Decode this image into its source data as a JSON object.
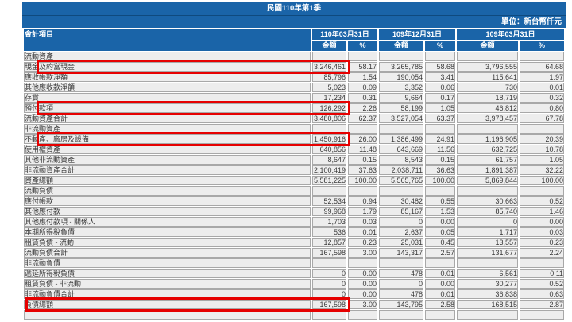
{
  "header": {
    "period_title": "民國110年第1季",
    "unit_label": "單位：新台幣仟元"
  },
  "table": {
    "item_column_header": "會計項目",
    "amount_header": "金額",
    "percent_header": "%",
    "period_headers": [
      "110年03月31日",
      "109年12月31日",
      "109年03月31日"
    ],
    "rows": [
      {
        "label": "流動資產",
        "indent": 0,
        "section": true,
        "highlight": false,
        "values": null
      },
      {
        "label": "現金及約當現金",
        "indent": 2,
        "section": false,
        "highlight": true,
        "values": [
          "3,246,461",
          "58.17",
          "3,265,785",
          "58.68",
          "3,796,555",
          "64.68"
        ]
      },
      {
        "label": "應收帳款淨額",
        "indent": 2,
        "section": false,
        "highlight": false,
        "values": [
          "85,796",
          "1.54",
          "190,054",
          "3.41",
          "115,641",
          "1.97"
        ]
      },
      {
        "label": "其他應收款淨額",
        "indent": 2,
        "section": false,
        "highlight": false,
        "values": [
          "5,023",
          "0.09",
          "3,352",
          "0.06",
          "730",
          "0.01"
        ]
      },
      {
        "label": "存貨",
        "indent": 2,
        "section": false,
        "highlight": false,
        "values": [
          "17,234",
          "0.31",
          "9,664",
          "0.17",
          "18,719",
          "0.32"
        ]
      },
      {
        "label": "預付款項",
        "indent": 2,
        "section": false,
        "highlight": true,
        "values": [
          "126,292",
          "2.26",
          "58,199",
          "1.05",
          "46,812",
          "0.80"
        ]
      },
      {
        "label": "流動資產合計",
        "indent": 1,
        "section": false,
        "highlight": false,
        "values": [
          "3,480,806",
          "62.37",
          "3,527,054",
          "63.37",
          "3,978,457",
          "67.78"
        ]
      },
      {
        "label": "非流動資產",
        "indent": 0,
        "section": true,
        "highlight": false,
        "values": null
      },
      {
        "label": "不動產、廠房及設備",
        "indent": 2,
        "section": false,
        "highlight": true,
        "values": [
          "1,450,916",
          "26.00",
          "1,386,499",
          "24.91",
          "1,196,905",
          "20.39"
        ]
      },
      {
        "label": "使用權資產",
        "indent": 2,
        "section": false,
        "highlight": false,
        "values": [
          "640,856",
          "11.48",
          "643,669",
          "11.56",
          "632,725",
          "10.78"
        ]
      },
      {
        "label": "其他非流動資產",
        "indent": 2,
        "section": false,
        "highlight": false,
        "values": [
          "8,647",
          "0.15",
          "8,543",
          "0.15",
          "61,757",
          "1.05"
        ]
      },
      {
        "label": "非流動資產合計",
        "indent": 1,
        "section": false,
        "highlight": false,
        "values": [
          "2,100,419",
          "37.63",
          "2,038,711",
          "36.63",
          "1,891,387",
          "32.22"
        ]
      },
      {
        "label": "資產總額",
        "indent": 0,
        "section": false,
        "highlight": false,
        "values": [
          "5,581,225",
          "100.00",
          "5,565,765",
          "100.00",
          "5,869,844",
          "100.00"
        ]
      },
      {
        "label": "流動負債",
        "indent": 0,
        "section": true,
        "highlight": false,
        "values": null
      },
      {
        "label": "應付帳款",
        "indent": 2,
        "section": false,
        "highlight": false,
        "values": [
          "52,534",
          "0.94",
          "30,482",
          "0.55",
          "30,663",
          "0.52"
        ]
      },
      {
        "label": "其他應付款",
        "indent": 2,
        "section": false,
        "highlight": false,
        "values": [
          "99,968",
          "1.79",
          "85,167",
          "1.53",
          "85,740",
          "1.46"
        ]
      },
      {
        "label": "其他應付款項 - 關係人",
        "indent": 2,
        "section": false,
        "highlight": false,
        "values": [
          "1,703",
          "0.03",
          "0",
          "0.00",
          "0",
          "0.00"
        ]
      },
      {
        "label": "本期所得稅負債",
        "indent": 2,
        "section": false,
        "highlight": false,
        "values": [
          "536",
          "0.01",
          "2,637",
          "0.05",
          "1,717",
          "0.03"
        ]
      },
      {
        "label": "租賃負債 - 流動",
        "indent": 2,
        "section": false,
        "highlight": false,
        "values": [
          "12,857",
          "0.23",
          "25,031",
          "0.45",
          "13,557",
          "0.23"
        ]
      },
      {
        "label": "流動負債合計",
        "indent": 1,
        "section": false,
        "highlight": false,
        "values": [
          "167,598",
          "3.00",
          "143,317",
          "2.57",
          "131,677",
          "2.24"
        ]
      },
      {
        "label": "非流動負債",
        "indent": 0,
        "section": true,
        "highlight": false,
        "values": null
      },
      {
        "label": "遞延所得稅負債",
        "indent": 2,
        "section": false,
        "highlight": false,
        "values": [
          "0",
          "0.00",
          "478",
          "0.01",
          "6,561",
          "0.11"
        ]
      },
      {
        "label": "租賃負債 - 非流動",
        "indent": 2,
        "section": false,
        "highlight": false,
        "values": [
          "0",
          "0.00",
          "0",
          "0.00",
          "30,277",
          "0.52"
        ]
      },
      {
        "label": "非流動負債合計",
        "indent": 1,
        "section": false,
        "highlight": false,
        "values": [
          "0",
          "0.00",
          "478",
          "0.01",
          "36,838",
          "0.63"
        ]
      },
      {
        "label": "負債總額",
        "indent": 0,
        "section": false,
        "highlight": true,
        "values": [
          "167,598",
          "3.00",
          "143,795",
          "2.58",
          "168,515",
          "2.87"
        ]
      }
    ]
  },
  "colors": {
    "header_blue": "#1A64A8",
    "banner_divider_blue": "#0F4A7E",
    "row_background": "#EDEDED",
    "cell_border": "#A8A8A8",
    "highlight_red": "#E60000",
    "body_text": "#3A3A3A"
  }
}
